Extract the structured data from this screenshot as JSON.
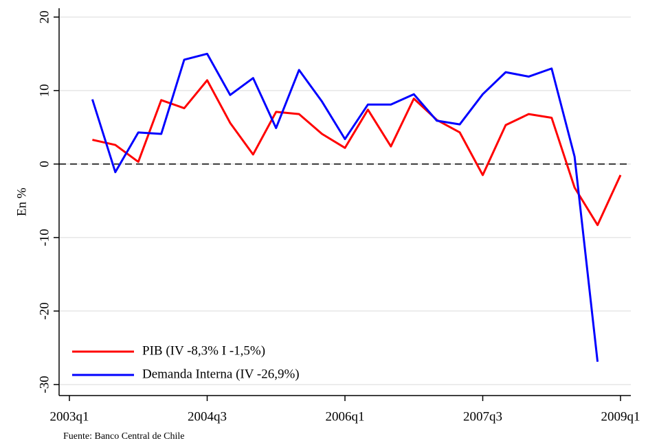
{
  "chart_data": {
    "type": "line",
    "y_label": "En %",
    "source": "Fuente: Banco Central de Chile",
    "categories": [
      "2003q1",
      null,
      null,
      null,
      null,
      null,
      "2004q3",
      null,
      null,
      null,
      null,
      null,
      "2006q1",
      null,
      null,
      null,
      null,
      null,
      "2007q3",
      null,
      null,
      null,
      null,
      null,
      "2009q1"
    ],
    "series": [
      {
        "name": "PIB (IV -8,3% I -1,5%)",
        "color": "#ff0000",
        "values": [
          null,
          3.3,
          2.6,
          0.3,
          8.7,
          7.6,
          11.4,
          5.6,
          1.3,
          7.1,
          6.8,
          4.1,
          2.2,
          7.4,
          2.4,
          8.9,
          6.0,
          4.3,
          -1.5,
          5.3,
          6.8,
          6.3,
          -3.2,
          -8.3,
          -1.5
        ]
      },
      {
        "name": "Demanda Interna (IV -26,9%)",
        "color": "#0000ff",
        "values": [
          null,
          8.8,
          -1.1,
          4.3,
          4.1,
          14.2,
          15.0,
          9.4,
          11.7,
          4.9,
          12.8,
          8.5,
          3.4,
          8.1,
          8.1,
          9.5,
          5.9,
          5.4,
          9.5,
          12.5,
          11.9,
          13.0,
          1.0,
          -26.9,
          null
        ]
      }
    ],
    "ylim": [
      -31.5,
      21.2
    ],
    "yticks": [
      -30,
      -20,
      -10,
      0,
      10,
      20
    ],
    "reference_line": 0,
    "grid": true
  }
}
